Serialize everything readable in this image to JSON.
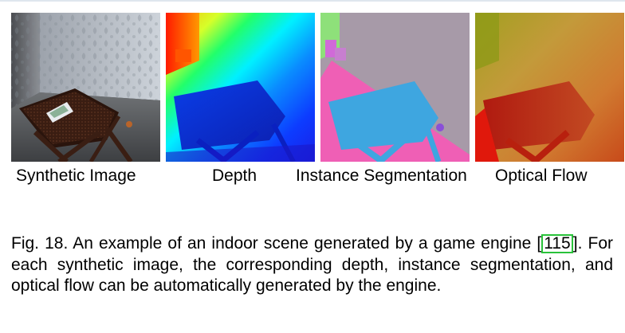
{
  "panels": [
    {
      "label": "Synthetic Image",
      "icon": "synthetic-render-image"
    },
    {
      "label": "Depth",
      "icon": "depth-map-image"
    },
    {
      "label": "Instance Segmentation",
      "icon": "instance-segmentation-image"
    },
    {
      "label": "Optical Flow",
      "icon": "optical-flow-image"
    }
  ],
  "caption": {
    "prefix": "Fig. 18. An example of an indoor scene generated by a game engine ",
    "cite_open": "[",
    "cite_ref": "115",
    "cite_close": "]",
    "suffix": ". For each synthetic image, the corresponding depth, instance segmentation, and optical flow can be automatically generated by the engine."
  },
  "colors": {
    "cite_box": "#29c23a",
    "seg_table": "#3ea6e0",
    "seg_wall": "#a79aa8",
    "seg_floor": "#ef5fb5",
    "seg_plant": "#8ee07a"
  }
}
